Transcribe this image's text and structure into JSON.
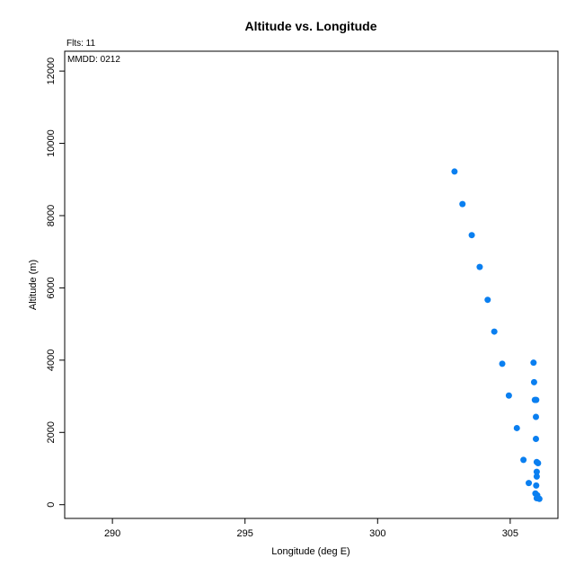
{
  "chart_data": {
    "type": "scatter",
    "title": "Altitude vs. Longitude",
    "annotations": {
      "flights": "Flts: 11",
      "date": "MMDD: 0212"
    },
    "xlabel": "Longitude (deg E)",
    "ylabel": "Altitude (m)",
    "xlim": [
      288.2,
      306.8
    ],
    "ylim": [
      -380,
      12550
    ],
    "xticks": [
      290,
      295,
      300,
      305
    ],
    "yticks": [
      0,
      2000,
      4000,
      6000,
      8000,
      10000,
      12000
    ],
    "grid": false,
    "marker_color": "#0a7ff0",
    "points": [
      {
        "x": 302.9,
        "y": 9220
      },
      {
        "x": 303.2,
        "y": 8320
      },
      {
        "x": 303.55,
        "y": 7460
      },
      {
        "x": 303.85,
        "y": 6580
      },
      {
        "x": 304.15,
        "y": 5670
      },
      {
        "x": 304.4,
        "y": 4790
      },
      {
        "x": 304.7,
        "y": 3900
      },
      {
        "x": 304.95,
        "y": 3020
      },
      {
        "x": 305.25,
        "y": 2120
      },
      {
        "x": 305.5,
        "y": 1240
      },
      {
        "x": 305.7,
        "y": 600
      },
      {
        "x": 305.88,
        "y": 3930
      },
      {
        "x": 305.9,
        "y": 3390
      },
      {
        "x": 305.93,
        "y": 2900
      },
      {
        "x": 305.98,
        "y": 2900
      },
      {
        "x": 305.97,
        "y": 2430
      },
      {
        "x": 305.97,
        "y": 1820
      },
      {
        "x": 306.0,
        "y": 1180
      },
      {
        "x": 306.05,
        "y": 1150
      },
      {
        "x": 306.0,
        "y": 910
      },
      {
        "x": 306.0,
        "y": 780
      },
      {
        "x": 305.98,
        "y": 530
      },
      {
        "x": 305.95,
        "y": 310
      },
      {
        "x": 306.02,
        "y": 260
      },
      {
        "x": 306.0,
        "y": 180
      },
      {
        "x": 306.1,
        "y": 160
      }
    ]
  }
}
